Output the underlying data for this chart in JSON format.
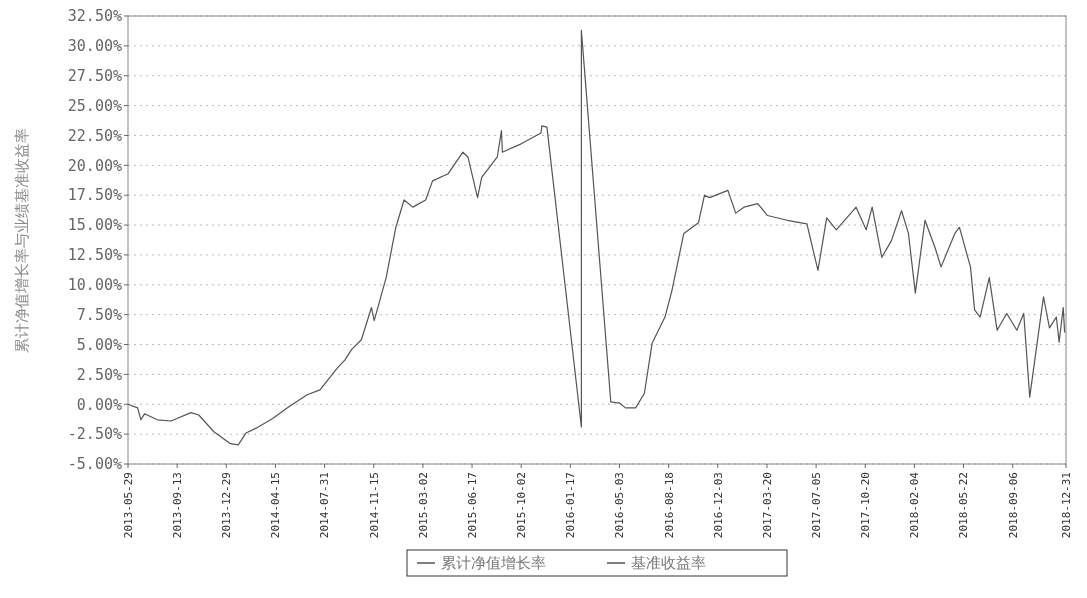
{
  "chart_data": {
    "type": "line",
    "ylabel": "累计净值增长率与业绩基准收益率",
    "x": [
      "2013-05-29",
      "2013-06-19",
      "2013-06-26",
      "2013-07-04",
      "2013-08-01",
      "2013-08-31",
      "2013-10-13",
      "2013-10-30",
      "2013-12-02",
      "2014-01-07",
      "2014-01-24",
      "2014-02-10",
      "2014-03-04",
      "2014-04-09",
      "2014-05-11",
      "2014-06-23",
      "2014-07-21",
      "2014-08-27",
      "2014-09-13",
      "2014-09-28",
      "2014-10-19",
      "2014-11-10",
      "2014-11-16",
      "2014-12-12",
      "2015-01-02",
      "2015-01-20",
      "2015-02-08",
      "2015-03-08",
      "2015-03-23",
      "2015-04-26",
      "2015-05-28",
      "2015-06-08",
      "2015-06-29",
      "2015-07-08",
      "2015-08-11",
      "2015-08-20",
      "2015-08-22",
      "2015-10-02",
      "2015-11-14",
      "2015-11-16",
      "2015-11-27",
      "2016-02-10",
      "2016-02-10",
      "2016-04-14",
      "2016-05-03",
      "2016-05-16",
      "2016-06-07",
      "2016-06-26",
      "2016-07-13",
      "2016-08-10",
      "2016-08-25",
      "2016-09-20",
      "2016-10-22",
      "2016-11-04",
      "2016-11-15",
      "2016-12-25",
      "2017-01-11",
      "2017-01-29",
      "2017-02-28",
      "2017-03-21",
      "2017-05-03",
      "2017-06-15",
      "2017-07-09",
      "2017-07-28",
      "2017-08-18",
      "2017-09-30",
      "2017-10-22",
      "2017-11-04",
      "2017-11-25",
      "2017-12-16",
      "2018-01-07",
      "2018-01-22",
      "2018-02-06",
      "2018-02-27",
      "2018-03-21",
      "2018-04-03",
      "2018-05-03",
      "2018-05-13",
      "2018-06-06",
      "2018-06-15",
      "2018-06-27",
      "2018-07-17",
      "2018-08-03",
      "2018-08-24",
      "2018-09-15",
      "2018-09-30",
      "2018-10-13",
      "2018-10-28",
      "2018-11-12",
      "2018-11-25",
      "2018-12-10",
      "2018-12-16",
      "2018-12-25",
      "2018-12-28"
    ],
    "series": [
      {
        "name": "累计净值增长率",
        "color": "#555555",
        "values": [
          0.0,
          -0.3,
          -1.3,
          -0.8,
          -1.3,
          -1.4,
          -0.7,
          -0.9,
          -2.3,
          -3.3,
          -3.4,
          -2.4,
          -2.0,
          -1.2,
          -0.3,
          0.8,
          1.2,
          3.0,
          3.7,
          4.6,
          5.4,
          8.1,
          7.0,
          10.6,
          14.8,
          17.1,
          16.5,
          17.1,
          18.7,
          19.3,
          21.1,
          20.7,
          17.3,
          19.0,
          20.7,
          22.9,
          21.1,
          21.8,
          22.7,
          23.3,
          23.2,
          -1.9,
          31.3,
          0.2,
          0.1,
          -0.3,
          -0.3,
          0.9,
          5.1,
          7.3,
          9.5,
          14.3,
          15.2,
          17.5,
          17.3,
          17.9,
          16.0,
          16.5,
          16.8,
          15.8,
          15.4,
          15.1,
          11.2,
          15.6,
          14.6,
          16.5,
          14.6,
          16.5,
          12.3,
          13.7,
          16.2,
          14.3,
          9.3,
          15.4,
          13.1,
          11.5,
          14.3,
          14.8,
          11.5,
          7.9,
          7.3,
          10.6,
          6.2,
          7.6,
          6.2,
          7.6,
          0.6,
          4.8,
          9.0,
          6.4,
          7.3,
          5.2,
          8.1,
          6.0
        ]
      },
      {
        "name": "基准收益率",
        "color": "#555555",
        "values": [
          null,
          null,
          null,
          null,
          null,
          null,
          null,
          null,
          null,
          null,
          null,
          null,
          null,
          null,
          null,
          null,
          null,
          null,
          null,
          null,
          null,
          null,
          null,
          null,
          null,
          null,
          null,
          null,
          null,
          null,
          null,
          null,
          null,
          null,
          null,
          null,
          null,
          null,
          null,
          null,
          null,
          null,
          null,
          null,
          null,
          null,
          null,
          null,
          null,
          null,
          null,
          null,
          null,
          null,
          null,
          null,
          null,
          null,
          null,
          null,
          null,
          null,
          null,
          null,
          null,
          null,
          null,
          null,
          null,
          null,
          null,
          null,
          null,
          null,
          null,
          null,
          null,
          null,
          null,
          null,
          null,
          null,
          null,
          null,
          null,
          null,
          null,
          null,
          null,
          null,
          null,
          null,
          null,
          null
        ]
      }
    ],
    "xlim": [
      "2013-05-29",
      "2018-12-31"
    ],
    "xticks": [
      "2013-05-29",
      "2013-09-13",
      "2013-12-29",
      "2014-04-15",
      "2014-07-31",
      "2014-11-15",
      "2015-03-02",
      "2015-06-17",
      "2015-10-02",
      "2016-01-17",
      "2016-05-03",
      "2016-08-18",
      "2016-12-03",
      "2017-03-20",
      "2017-07-05",
      "2017-10-20",
      "2018-02-04",
      "2018-05-22",
      "2018-09-06",
      "2018-12-31"
    ],
    "ylim": [
      -5,
      32.5
    ],
    "yticks": [
      {
        "value": -5,
        "label": "-5.00%"
      },
      {
        "value": -2.5,
        "label": "-2.50%"
      },
      {
        "value": 0,
        "label": "0.00%"
      },
      {
        "value": 2.5,
        "label": "2.50%"
      },
      {
        "value": 5,
        "label": "5.00%"
      },
      {
        "value": 7.5,
        "label": "7.50%"
      },
      {
        "value": 10,
        "label": "10.00%"
      },
      {
        "value": 12.5,
        "label": "12.50%"
      },
      {
        "value": 15,
        "label": "15.00%"
      },
      {
        "value": 17.5,
        "label": "17.50%"
      },
      {
        "value": 20,
        "label": "20.00%"
      },
      {
        "value": 22.5,
        "label": "22.50%"
      },
      {
        "value": 25,
        "label": "25.00%"
      },
      {
        "value": 27.5,
        "label": "27.50%"
      },
      {
        "value": 30,
        "label": "30.00%"
      },
      {
        "value": 32.5,
        "label": "32.50%"
      }
    ],
    "grid": "y",
    "legend": "bottom",
    "marker": "none",
    "line_style": "solid"
  }
}
